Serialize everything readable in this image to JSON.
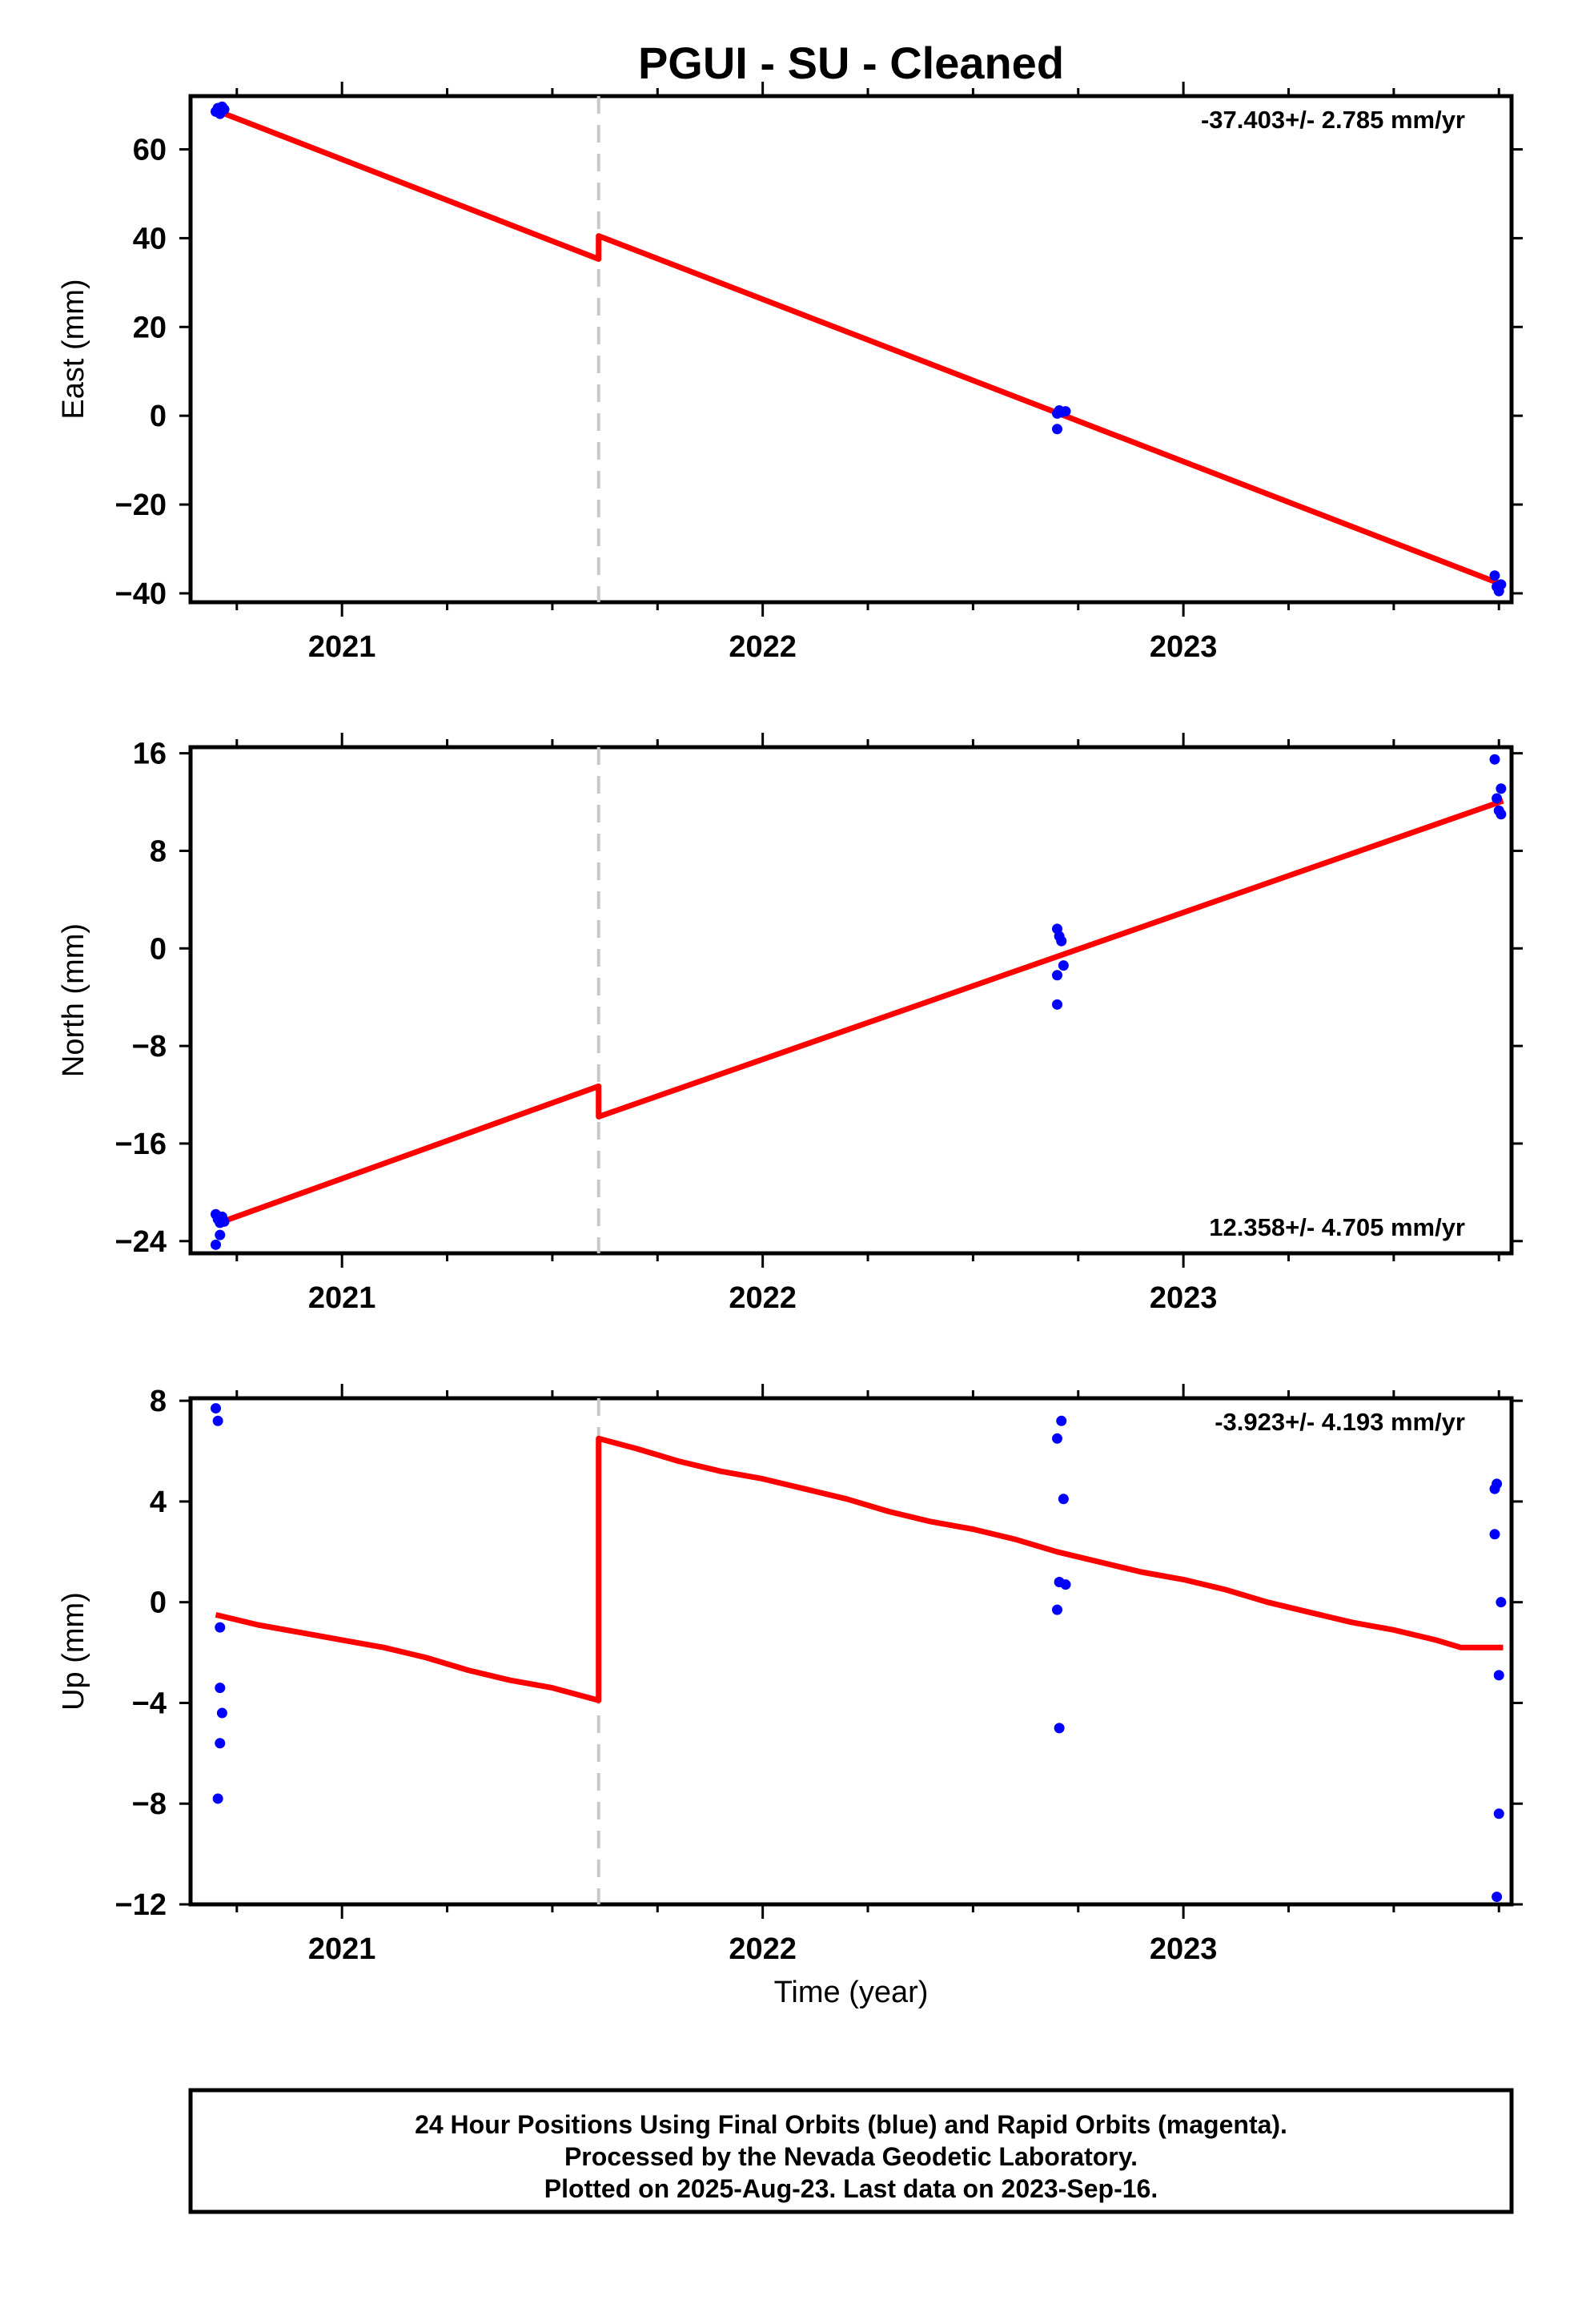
{
  "chart_data": {
    "title": "PGUI  - SU - Cleaned",
    "type": "scatter",
    "xlabel": "Time (year)",
    "xlim": [
      2020.64,
      2023.78
    ],
    "x_ticks": [
      2021,
      2022,
      2023
    ],
    "x_tick_labels": [
      "2021",
      "2022",
      "2023"
    ],
    "offset_epoch": 2021.61,
    "panels": [
      {
        "name": "east",
        "ylabel": "East (mm)",
        "ylim": [
          -42,
          72
        ],
        "y_ticks": [
          -40,
          -20,
          0,
          20,
          40,
          60
        ],
        "y_tick_labels": [
          "−40",
          "−20",
          "0",
          "20",
          "40",
          "60"
        ],
        "rate_label": "-37.403+/- 2.785 mm/yr",
        "rate_position": "top-right",
        "points": [
          [
            2020.7,
            68.5
          ],
          [
            2020.705,
            69.3
          ],
          [
            2020.71,
            68.0
          ],
          [
            2020.715,
            69.6
          ],
          [
            2020.72,
            69.0
          ],
          [
            2022.7,
            0.5
          ],
          [
            2022.705,
            1.2
          ],
          [
            2022.7,
            -3.0
          ],
          [
            2022.71,
            0.8
          ],
          [
            2022.72,
            1.0
          ],
          [
            2023.74,
            -36.0
          ],
          [
            2023.745,
            -38.5
          ],
          [
            2023.75,
            -39.5
          ],
          [
            2023.755,
            -38.0
          ]
        ],
        "model": [
          [
            2020.7,
            68.8
          ],
          [
            2021.61,
            35.3
          ],
          [
            2021.61,
            40.5
          ],
          [
            2023.76,
            -38.1
          ]
        ]
      },
      {
        "name": "north",
        "ylabel": "North (mm)",
        "ylim": [
          -25,
          16.5
        ],
        "y_ticks": [
          -24,
          -16,
          -8,
          0,
          8,
          16
        ],
        "y_tick_labels": [
          "−24",
          "−16",
          "−8",
          "0",
          "8",
          "16"
        ],
        "rate_label": "12.358+/- 4.705 mm/yr",
        "rate_position": "bottom-right",
        "points": [
          [
            2020.7,
            -21.8
          ],
          [
            2020.705,
            -22.2
          ],
          [
            2020.71,
            -22.5
          ],
          [
            2020.71,
            -23.5
          ],
          [
            2020.7,
            -24.3
          ],
          [
            2020.715,
            -22.0
          ],
          [
            2020.72,
            -22.4
          ],
          [
            2022.7,
            1.6
          ],
          [
            2022.705,
            1.0
          ],
          [
            2022.71,
            0.6
          ],
          [
            2022.715,
            -1.4
          ],
          [
            2022.7,
            -2.2
          ],
          [
            2022.7,
            -4.6
          ],
          [
            2023.74,
            15.5
          ],
          [
            2023.745,
            12.3
          ],
          [
            2023.75,
            11.3
          ],
          [
            2023.755,
            13.1
          ],
          [
            2023.755,
            11.0
          ]
        ],
        "model": [
          [
            2020.7,
            -22.6
          ],
          [
            2021.61,
            -11.3
          ],
          [
            2021.61,
            -13.8
          ],
          [
            2023.76,
            12.1
          ]
        ]
      },
      {
        "name": "up",
        "ylabel": "Up (mm)",
        "ylim": [
          -12,
          8.1
        ],
        "y_ticks": [
          -12,
          -8,
          -4,
          0,
          4,
          8
        ],
        "y_tick_labels": [
          "−12",
          "−8",
          "−4",
          "0",
          "4",
          "8"
        ],
        "rate_label": "-3.923+/- 4.193 mm/yr",
        "rate_position": "top-right",
        "points": [
          [
            2020.7,
            7.7
          ],
          [
            2020.705,
            7.2
          ],
          [
            2020.71,
            -1.0
          ],
          [
            2020.71,
            -3.4
          ],
          [
            2020.715,
            -4.4
          ],
          [
            2020.71,
            -5.6
          ],
          [
            2020.705,
            -7.8
          ],
          [
            2022.7,
            6.5
          ],
          [
            2022.71,
            7.2
          ],
          [
            2022.715,
            4.1
          ],
          [
            2022.705,
            0.8
          ],
          [
            2022.72,
            0.7
          ],
          [
            2022.7,
            -0.3
          ],
          [
            2022.705,
            -5.0
          ],
          [
            2023.74,
            4.5
          ],
          [
            2023.745,
            4.7
          ],
          [
            2023.74,
            2.7
          ],
          [
            2023.755,
            0.0
          ],
          [
            2023.75,
            -2.9
          ],
          [
            2023.75,
            -8.4
          ],
          [
            2023.745,
            -11.7
          ]
        ],
        "model": [
          [
            2020.7,
            -0.5
          ],
          [
            2020.8,
            -0.9
          ],
          [
            2020.9,
            -1.2
          ],
          [
            2021.0,
            -1.5
          ],
          [
            2021.1,
            -1.8
          ],
          [
            2021.2,
            -2.2
          ],
          [
            2021.3,
            -2.7
          ],
          [
            2021.4,
            -3.1
          ],
          [
            2021.5,
            -3.4
          ],
          [
            2021.61,
            -3.9
          ],
          [
            2021.61,
            6.5
          ],
          [
            2021.7,
            6.1
          ],
          [
            2021.8,
            5.6
          ],
          [
            2021.9,
            5.2
          ],
          [
            2022.0,
            4.9
          ],
          [
            2022.1,
            4.5
          ],
          [
            2022.2,
            4.1
          ],
          [
            2022.3,
            3.6
          ],
          [
            2022.4,
            3.2
          ],
          [
            2022.5,
            2.9
          ],
          [
            2022.6,
            2.5
          ],
          [
            2022.7,
            2.0
          ],
          [
            2022.8,
            1.6
          ],
          [
            2022.9,
            1.2
          ],
          [
            2023.0,
            0.9
          ],
          [
            2023.1,
            0.5
          ],
          [
            2023.2,
            0.0
          ],
          [
            2023.3,
            -0.4
          ],
          [
            2023.4,
            -0.8
          ],
          [
            2023.5,
            -1.1
          ],
          [
            2023.6,
            -1.5
          ],
          [
            2023.66,
            -1.8
          ],
          [
            2023.76,
            -1.8
          ]
        ]
      }
    ],
    "colors": {
      "points": "#0000ff",
      "model": "#ff0000",
      "offset_line": "#c8c8c8"
    },
    "footer": [
      "24 Hour Positions Using Final Orbits (blue) and Rapid Orbits (magenta).",
      "Processed by the Nevada Geodetic Laboratory.",
      "Plotted on 2025-Aug-23. Last data on 2023-Sep-16."
    ]
  }
}
